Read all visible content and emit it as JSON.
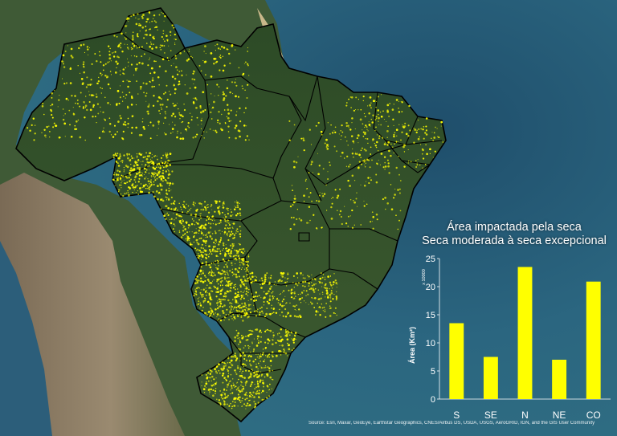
{
  "chart_data": {
    "type": "bar",
    "title": "Área impactada pela seca",
    "subtitle": "Seca moderada à seca excepcional",
    "categories": [
      "S",
      "SE",
      "N",
      "NE",
      "CO"
    ],
    "values": [
      13.5,
      7.5,
      23.5,
      7.0,
      20.9
    ],
    "ylabel": "Área (Km²)",
    "yscale_label": "x 10000",
    "ylim": [
      0,
      25
    ],
    "yticks": [
      0,
      5,
      10,
      15,
      20,
      25
    ],
    "grid": false,
    "bar_color": "#ffff00"
  },
  "attribution": "Source: Esri, Maxar, GeoEye, Earthstar Geographics, CNES/Airbus DS, USDA, USGS, AeroGRID, IGN, and the GIS User Community",
  "colors": {
    "ocean": "#2a5a73",
    "land": "#3c5a2e",
    "drought_marks": "#ffff00",
    "borders": "#000000"
  }
}
